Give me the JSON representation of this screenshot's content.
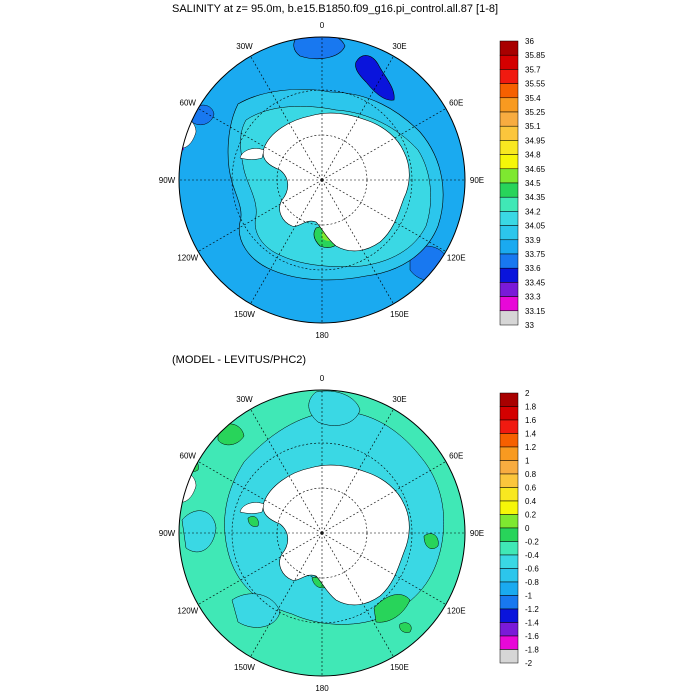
{
  "chart_data": [
    {
      "type": "heatmap",
      "projection": "south-polar-stereographic",
      "title": "SALINITY at z=  95.0m, b.e15.B1850.f09_g16.pi_control.all.87 [1-8]",
      "longitude_labels": [
        "0",
        "30E",
        "60E",
        "90E",
        "120E",
        "150E",
        "180",
        "150W",
        "120W",
        "90W",
        "60W",
        "30W"
      ],
      "longitude_values": [
        0,
        30,
        60,
        90,
        120,
        150,
        180,
        -150,
        -120,
        -90,
        -60,
        -30
      ],
      "colorbar": {
        "labels": [
          "36",
          "35.85",
          "35.7",
          "35.55",
          "35.4",
          "35.25",
          "35.1",
          "34.95",
          "34.8",
          "34.65",
          "34.5",
          "34.35",
          "34.2",
          "34.05",
          "33.9",
          "33.75",
          "33.6",
          "33.45",
          "33.3",
          "33.15",
          "33"
        ],
        "colors": [
          "#a80000",
          "#d40000",
          "#f01a10",
          "#f66000",
          "#f89a20",
          "#f8ac40",
          "#fbc63c",
          "#f8e820",
          "#f6f608",
          "#7ee830",
          "#28d45a",
          "#40e8b6",
          "#3ad8e4",
          "#2cc6ec",
          "#1aaaf0",
          "#1878f0",
          "#0a14dc",
          "#7a1ad8",
          "#e808d8",
          "#d6d6d6",
          "#848484"
        ],
        "range": [
          33,
          36
        ]
      },
      "regions": [
        {
          "zone": "open ocean north of 60S",
          "value_range": [
            33.9,
            34.05
          ]
        },
        {
          "zone": "Antarctic shelf and coastal belt",
          "value_range": [
            34.05,
            34.5
          ]
        },
        {
          "zone": "Ross Sea shelf patch",
          "value_range": [
            34.5,
            34.8
          ]
        },
        {
          "zone": "South Atlantic / Indian patches",
          "value_range": [
            33.75,
            33.9
          ]
        },
        {
          "zone": "continent (masked)",
          "value": null
        }
      ]
    },
    {
      "type": "heatmap",
      "projection": "south-polar-stereographic",
      "title": "(MODEL - LEVITUS/PHC2)",
      "longitude_labels": [
        "0",
        "30E",
        "60E",
        "90E",
        "120E",
        "150E",
        "180",
        "150W",
        "120W",
        "90W",
        "60W",
        "30W"
      ],
      "longitude_values": [
        0,
        30,
        60,
        90,
        120,
        150,
        180,
        -150,
        -120,
        -90,
        -60,
        -30
      ],
      "colorbar": {
        "labels": [
          "2",
          "1.8",
          "1.6",
          "1.4",
          "1.2",
          "1",
          "0.8",
          "0.6",
          "0.4",
          "0.2",
          "0",
          "-0.2",
          "-0.4",
          "-0.6",
          "-0.8",
          "-1",
          "-1.2",
          "-1.4",
          "-1.6",
          "-1.8",
          "-2"
        ],
        "colors": [
          "#a80000",
          "#d40000",
          "#f01a10",
          "#f66000",
          "#f89a20",
          "#f8ac40",
          "#fbc63c",
          "#f8e820",
          "#f6f608",
          "#7ee830",
          "#28d45a",
          "#40e8b6",
          "#3ad8e4",
          "#2cc6ec",
          "#1aaaf0",
          "#1878f0",
          "#0a14dc",
          "#7a1ad8",
          "#e808d8",
          "#d6d6d6",
          "#848484"
        ],
        "range": [
          -2,
          2
        ]
      },
      "regions": [
        {
          "zone": "most of the ocean",
          "value_range": [
            -0.2,
            0
          ]
        },
        {
          "zone": "scattered patches",
          "value_range": [
            0,
            0.2
          ]
        },
        {
          "zone": "Pacific sector pockets",
          "value_range": [
            -0.4,
            -0.2
          ]
        },
        {
          "zone": "continent (masked)",
          "value": null
        }
      ]
    }
  ]
}
